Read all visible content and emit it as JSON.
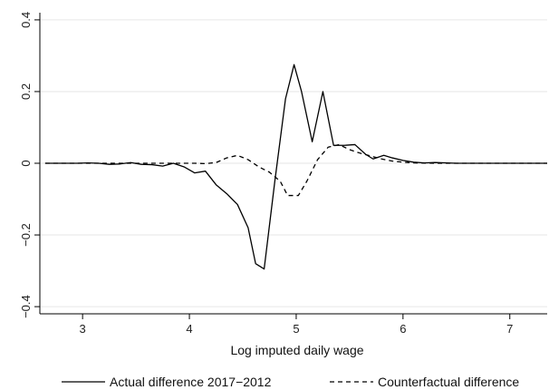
{
  "chart_data": {
    "type": "line",
    "title": "",
    "xlabel": "Log imputed daily wage",
    "ylabel": "",
    "xlim": [
      2.6,
      7.35
    ],
    "ylim": [
      -0.42,
      0.42
    ],
    "xticks": [
      3,
      4,
      5,
      6,
      7
    ],
    "xtick_labels": [
      "3",
      "4",
      "5",
      "6",
      "7"
    ],
    "yticks": [
      -0.4,
      -0.2,
      0,
      0.2,
      0.4
    ],
    "ytick_labels": [
      "−0.4",
      "−0.2",
      "0",
      "0.2",
      "0.4"
    ],
    "grid": "horizontal",
    "legend_position": "bottom",
    "series": [
      {
        "name": "Actual difference 2017−2012",
        "style": "solid",
        "color": "#000000",
        "x": [
          2.65,
          2.75,
          2.85,
          2.95,
          3.05,
          3.15,
          3.25,
          3.35,
          3.45,
          3.55,
          3.65,
          3.75,
          3.85,
          3.95,
          4.05,
          4.15,
          4.25,
          4.35,
          4.45,
          4.55,
          4.62,
          4.7,
          4.8,
          4.9,
          4.98,
          5.05,
          5.15,
          5.2,
          5.25,
          5.35,
          5.45,
          5.55,
          5.65,
          5.72,
          5.82,
          5.9,
          6.0,
          6.1,
          6.2,
          6.3,
          6.5,
          6.8,
          7.1,
          7.35
        ],
        "y": [
          0,
          0,
          0,
          0,
          0.001,
          0,
          -0.003,
          -0.002,
          0.002,
          -0.003,
          -0.004,
          -0.008,
          0.0,
          -0.01,
          -0.027,
          -0.022,
          -0.06,
          -0.085,
          -0.115,
          -0.18,
          -0.28,
          -0.295,
          -0.05,
          0.18,
          0.275,
          0.2,
          0.06,
          0.13,
          0.2,
          0.05,
          0.05,
          0.052,
          0.025,
          0.012,
          0.022,
          0.015,
          0.008,
          0.003,
          0.001,
          0.002,
          0,
          0,
          0,
          0
        ]
      },
      {
        "name": "Counterfactual difference",
        "style": "dashed",
        "color": "#000000",
        "x": [
          2.65,
          2.85,
          3.05,
          3.25,
          3.45,
          3.65,
          3.85,
          4.05,
          4.15,
          4.25,
          4.35,
          4.45,
          4.55,
          4.65,
          4.75,
          4.85,
          4.92,
          5.02,
          5.1,
          5.2,
          5.3,
          5.4,
          5.5,
          5.6,
          5.7,
          5.8,
          5.9,
          6.0,
          6.1,
          6.3,
          6.6,
          7.0,
          7.35
        ],
        "y": [
          0,
          0,
          0,
          0,
          0,
          0,
          0,
          0,
          -0.001,
          0.002,
          0.015,
          0.022,
          0.01,
          -0.01,
          -0.025,
          -0.05,
          -0.09,
          -0.09,
          -0.05,
          0.01,
          0.045,
          0.052,
          0.038,
          0.028,
          0.02,
          0.012,
          0.006,
          0.003,
          0.001,
          0,
          0,
          0,
          0
        ]
      }
    ]
  }
}
